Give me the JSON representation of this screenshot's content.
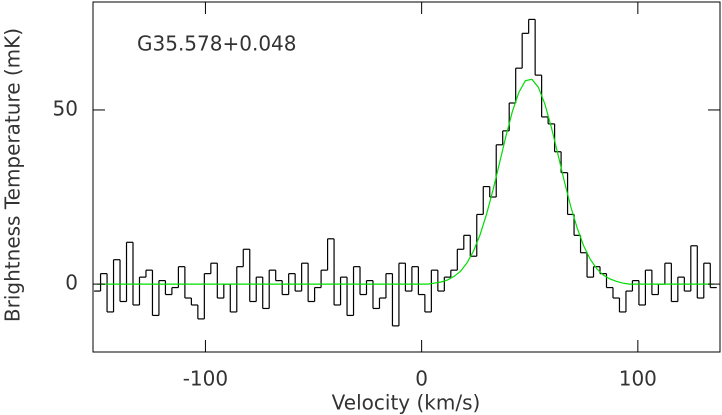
{
  "chart_data": {
    "type": "line",
    "annotation": "G35.578+0.048",
    "xlabel": "Velocity (km/s)",
    "ylabel": "Brightness Temperature (mK)",
    "xlim": [
      -152,
      138
    ],
    "ylim": [
      -19.5,
      81
    ],
    "xticks": [
      -100,
      0,
      100
    ],
    "yticks": [
      0,
      50
    ],
    "x": [
      -150,
      -147,
      -144,
      -141,
      -138,
      -135,
      -132,
      -129,
      -126,
      -123,
      -120,
      -117,
      -114,
      -111,
      -108,
      -105,
      -102,
      -99,
      -96,
      -93,
      -90,
      -87,
      -84,
      -81,
      -78,
      -75,
      -72,
      -69,
      -66,
      -63,
      -60,
      -57,
      -54,
      -51,
      -48,
      -45,
      -42,
      -39,
      -36,
      -33,
      -30,
      -27,
      -24,
      -21,
      -18,
      -15,
      -12,
      -9,
      -6,
      -3,
      0,
      3,
      6,
      9,
      12,
      15,
      18,
      21,
      24,
      27,
      30,
      33,
      36,
      39,
      42,
      45,
      48,
      51,
      54,
      57,
      60,
      63,
      66,
      69,
      72,
      75,
      78,
      81,
      84,
      87,
      90,
      93,
      96,
      99,
      102,
      105,
      108,
      111,
      114,
      117,
      120,
      123,
      126,
      129,
      132,
      135
    ],
    "series": [
      {
        "color": "#000000",
        "drawstyle": "steps-mid",
        "values": [
          -2,
          3,
          -8,
          7,
          -5,
          12,
          -6,
          2,
          4,
          -9,
          1,
          -3,
          -1,
          5,
          -4,
          -6,
          -10,
          3,
          6,
          -4,
          0,
          -8,
          5,
          10,
          -5,
          2,
          -7,
          4,
          1,
          -3,
          3,
          -2,
          6,
          -5,
          -1,
          4,
          13,
          -6,
          2,
          -9,
          5,
          -3,
          1,
          -7,
          -4,
          3,
          -12,
          6,
          -2,
          5,
          -3,
          -8,
          4,
          -2,
          2,
          4,
          10,
          14,
          8,
          20,
          28,
          25,
          40,
          44,
          52,
          62,
          72,
          76,
          60,
          48,
          46,
          38,
          32,
          20,
          14,
          9,
          2,
          5,
          3,
          -1,
          -4,
          -8,
          -2,
          1,
          -6,
          4,
          -3,
          0,
          6,
          -5,
          2,
          -2,
          11,
          -4,
          6,
          -1
        ]
      },
      {
        "color": "#00dd00",
        "drawstyle": "default",
        "values": [
          0,
          0,
          0,
          0,
          0,
          0,
          0,
          0,
          0,
          0,
          0,
          0,
          0,
          0,
          0,
          0,
          0,
          0,
          0,
          0,
          0,
          0,
          0,
          0,
          0,
          0,
          0,
          0,
          0,
          0,
          0,
          0,
          0,
          0,
          0,
          0,
          0,
          0,
          0,
          0,
          0,
          0,
          0,
          0,
          0,
          0,
          0,
          0,
          0,
          0,
          0,
          0,
          0.3,
          0.6,
          1.2,
          2.2,
          3.7,
          6.1,
          9.5,
          14.1,
          20.0,
          27.0,
          34.7,
          42.5,
          49.6,
          55.1,
          58.4,
          58.8,
          56.5,
          51.7,
          45.0,
          37.4,
          29.5,
          22.2,
          16.0,
          10.9,
          7.1,
          4.4,
          2.6,
          1.5,
          0.8,
          0.3,
          0,
          0,
          0,
          0,
          0,
          0,
          0,
          0,
          0,
          0,
          0,
          0,
          0,
          0
        ]
      }
    ]
  }
}
